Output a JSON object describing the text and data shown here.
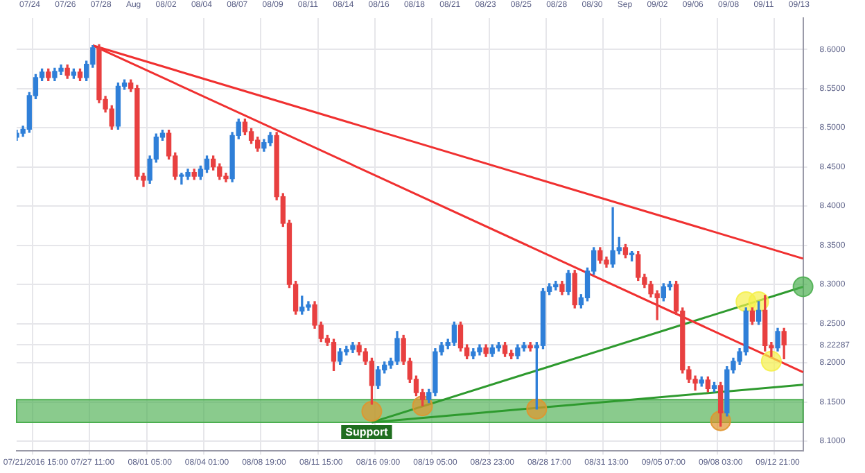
{
  "chart_data": {
    "type": "candlestick",
    "categories": [
      null,
      null,
      null,
      "07/21/2016 15:00",
      null,
      null,
      null,
      null,
      null,
      null,
      null,
      null,
      "07/27 11:00",
      null,
      null,
      null,
      null,
      null,
      null,
      null,
      null,
      "08/01 05:00",
      null,
      null,
      null,
      null,
      null,
      null,
      null,
      null,
      "08/04 01:00",
      null,
      null,
      null,
      null,
      null,
      null,
      null,
      null,
      "08/08 19:00",
      null,
      null,
      null,
      null,
      null,
      null,
      null,
      null,
      "08/11 15:00",
      null,
      null,
      null,
      null,
      null,
      null,
      null,
      null,
      "08/16 09:00",
      null,
      null,
      null,
      null,
      null,
      null,
      null,
      null,
      "08/19 05:00",
      null,
      null,
      null,
      null,
      null,
      null,
      null,
      null,
      "08/23 23:00",
      null,
      null,
      null,
      null,
      null,
      null,
      null,
      null,
      "08/28 17:00",
      null,
      null,
      null,
      null,
      null,
      null,
      null,
      null,
      "08/31 13:00",
      null,
      null,
      null,
      null,
      null,
      null,
      null,
      null,
      "09/05 07:00",
      null,
      null,
      null,
      null,
      null,
      null,
      null,
      null,
      "09/08 03:00",
      null,
      null,
      null,
      null,
      null,
      null,
      null,
      null,
      "09/12 21:00",
      null,
      null,
      null,
      null
    ],
    "ohlc": [
      [
        8.488,
        8.497,
        8.484,
        8.493
      ],
      [
        8.493,
        8.502,
        8.489,
        8.498
      ],
      [
        8.498,
        8.545,
        8.494,
        8.541
      ],
      [
        8.541,
        8.568,
        8.537,
        8.564
      ],
      [
        8.564,
        8.575,
        8.56,
        8.571
      ],
      [
        8.571,
        8.575,
        8.56,
        8.564
      ],
      [
        8.564,
        8.576,
        8.56,
        8.572
      ],
      [
        8.572,
        8.58,
        8.568,
        8.576
      ],
      [
        8.576,
        8.58,
        8.563,
        8.567
      ],
      [
        8.567,
        8.575,
        8.563,
        8.571
      ],
      [
        8.571,
        8.575,
        8.56,
        8.564
      ],
      [
        8.564,
        8.585,
        8.56,
        8.581
      ],
      [
        8.581,
        8.605,
        8.577,
        8.602
      ],
      [
        8.602,
        8.606,
        8.532,
        8.536
      ],
      [
        8.536,
        8.54,
        8.52,
        8.524
      ],
      [
        8.524,
        8.528,
        8.498,
        8.502
      ],
      [
        8.502,
        8.557,
        8.498,
        8.553
      ],
      [
        8.553,
        8.561,
        8.549,
        8.557
      ],
      [
        8.557,
        8.561,
        8.546,
        8.55
      ],
      [
        8.55,
        8.554,
        8.434,
        8.438
      ],
      [
        8.438,
        8.442,
        8.425,
        8.433
      ],
      [
        8.433,
        8.464,
        8.429,
        8.46
      ],
      [
        8.46,
        8.492,
        8.456,
        8.488
      ],
      [
        8.488,
        8.497,
        8.484,
        8.493
      ],
      [
        8.493,
        8.497,
        8.46,
        8.464
      ],
      [
        8.464,
        8.468,
        8.434,
        8.438
      ],
      [
        8.438,
        8.442,
        8.428,
        8.438
      ],
      [
        8.438,
        8.447,
        8.434,
        8.443
      ],
      [
        8.443,
        8.447,
        8.434,
        8.438
      ],
      [
        8.438,
        8.451,
        8.434,
        8.447
      ],
      [
        8.447,
        8.464,
        8.443,
        8.46
      ],
      [
        8.46,
        8.464,
        8.446,
        8.45
      ],
      [
        8.45,
        8.454,
        8.434,
        8.438
      ],
      [
        8.438,
        8.442,
        8.431,
        8.435
      ],
      [
        8.435,
        8.494,
        8.431,
        8.49
      ],
      [
        8.49,
        8.511,
        8.486,
        8.507
      ],
      [
        8.507,
        8.511,
        8.491,
        8.495
      ],
      [
        8.495,
        8.499,
        8.48,
        8.484
      ],
      [
        8.484,
        8.488,
        8.47,
        8.474
      ],
      [
        8.474,
        8.485,
        8.47,
        8.481
      ],
      [
        8.481,
        8.494,
        8.477,
        8.49
      ],
      [
        8.49,
        8.494,
        8.408,
        8.412
      ],
      [
        8.412,
        8.416,
        8.374,
        8.378
      ],
      [
        8.378,
        8.382,
        8.296,
        8.3
      ],
      [
        8.3,
        8.304,
        8.262,
        8.266
      ],
      [
        8.266,
        8.285,
        8.262,
        8.271
      ],
      [
        8.271,
        8.278,
        8.267,
        8.274
      ],
      [
        8.274,
        8.278,
        8.244,
        8.248
      ],
      [
        8.248,
        8.252,
        8.227,
        8.231
      ],
      [
        8.231,
        8.235,
        8.222,
        8.226
      ],
      [
        8.226,
        8.23,
        8.19,
        8.202
      ],
      [
        8.202,
        8.218,
        8.198,
        8.214
      ],
      [
        8.214,
        8.221,
        8.21,
        8.217
      ],
      [
        8.217,
        8.226,
        8.213,
        8.222
      ],
      [
        8.222,
        8.226,
        8.21,
        8.214
      ],
      [
        8.214,
        8.218,
        8.198,
        8.202
      ],
      [
        8.202,
        8.206,
        8.147,
        8.171
      ],
      [
        8.171,
        8.195,
        8.167,
        8.191
      ],
      [
        8.191,
        8.201,
        8.187,
        8.197
      ],
      [
        8.197,
        8.206,
        8.193,
        8.202
      ],
      [
        8.202,
        8.24,
        8.198,
        8.231
      ],
      [
        8.231,
        8.235,
        8.198,
        8.202
      ],
      [
        8.202,
        8.206,
        8.175,
        8.179
      ],
      [
        8.179,
        8.183,
        8.158,
        8.162
      ],
      [
        8.162,
        8.166,
        8.145,
        8.153
      ],
      [
        8.153,
        8.166,
        8.149,
        8.162
      ],
      [
        8.162,
        8.218,
        8.158,
        8.214
      ],
      [
        8.214,
        8.226,
        8.21,
        8.222
      ],
      [
        8.222,
        8.23,
        8.218,
        8.226
      ],
      [
        8.226,
        8.252,
        8.222,
        8.248
      ],
      [
        8.248,
        8.252,
        8.215,
        8.219
      ],
      [
        8.219,
        8.223,
        8.205,
        8.209
      ],
      [
        8.209,
        8.218,
        8.205,
        8.214
      ],
      [
        8.214,
        8.223,
        8.21,
        8.219
      ],
      [
        8.219,
        8.223,
        8.208,
        8.212
      ],
      [
        8.212,
        8.223,
        8.208,
        8.219
      ],
      [
        8.219,
        8.226,
        8.215,
        8.222
      ],
      [
        8.222,
        8.226,
        8.208,
        8.212
      ],
      [
        8.212,
        8.216,
        8.205,
        8.209
      ],
      [
        8.209,
        8.223,
        8.205,
        8.219
      ],
      [
        8.219,
        8.226,
        8.215,
        8.222
      ],
      [
        8.222,
        8.226,
        8.215,
        8.219
      ],
      [
        8.219,
        8.226,
        8.141,
        8.222
      ],
      [
        8.222,
        8.295,
        8.218,
        8.291
      ],
      [
        8.291,
        8.301,
        8.287,
        8.297
      ],
      [
        8.297,
        8.304,
        8.293,
        8.3
      ],
      [
        8.3,
        8.304,
        8.287,
        8.291
      ],
      [
        8.291,
        8.318,
        8.287,
        8.314
      ],
      [
        8.314,
        8.318,
        8.27,
        8.274
      ],
      [
        8.274,
        8.287,
        8.27,
        8.283
      ],
      [
        8.283,
        8.321,
        8.279,
        8.317
      ],
      [
        8.317,
        8.347,
        8.313,
        8.343
      ],
      [
        8.343,
        8.347,
        8.327,
        8.331
      ],
      [
        8.331,
        8.335,
        8.322,
        8.326
      ],
      [
        8.326,
        8.398,
        8.322,
        8.343
      ],
      [
        8.343,
        8.36,
        8.339,
        8.347
      ],
      [
        8.347,
        8.351,
        8.334,
        8.338
      ],
      [
        8.338,
        8.342,
        8.33,
        8.338
      ],
      [
        8.338,
        8.342,
        8.305,
        8.309
      ],
      [
        8.309,
        8.313,
        8.296,
        8.3
      ],
      [
        8.3,
        8.304,
        8.284,
        8.288
      ],
      [
        8.288,
        8.292,
        8.255,
        8.283
      ],
      [
        8.283,
        8.301,
        8.279,
        8.297
      ],
      [
        8.297,
        8.304,
        8.293,
        8.3
      ],
      [
        8.3,
        8.304,
        8.262,
        8.266
      ],
      [
        8.266,
        8.27,
        8.187,
        8.191
      ],
      [
        8.191,
        8.195,
        8.175,
        8.179
      ],
      [
        8.179,
        8.183,
        8.165,
        8.174
      ],
      [
        8.174,
        8.182,
        8.17,
        8.178
      ],
      [
        8.178,
        8.182,
        8.163,
        8.167
      ],
      [
        8.167,
        8.175,
        8.163,
        8.171
      ],
      [
        8.171,
        8.175,
        8.119,
        8.136
      ],
      [
        8.136,
        8.195,
        8.132,
        8.191
      ],
      [
        8.191,
        8.206,
        8.187,
        8.202
      ],
      [
        8.202,
        8.218,
        8.198,
        8.214
      ],
      [
        8.214,
        8.27,
        8.21,
        8.266
      ],
      [
        8.266,
        8.27,
        8.249,
        8.253
      ],
      [
        8.253,
        8.278,
        8.249,
        8.267
      ],
      [
        8.267,
        8.286,
        8.215,
        8.222
      ],
      [
        8.222,
        8.226,
        8.208,
        8.219
      ],
      [
        8.219,
        8.244,
        8.215,
        8.24
      ],
      [
        8.24,
        8.244,
        8.205,
        8.22287
      ],
      null,
      null,
      null
    ],
    "colors": [
      "#2f7fd8",
      "#2f7fd8",
      "#2f7fd8",
      "#2f7fd8",
      "#2f7fd8",
      "#e84040",
      "#2f7fd8",
      "#2f7fd8",
      "#e84040",
      "#2f7fd8",
      "#e84040",
      "#2f7fd8",
      "#2f7fd8",
      "#e84040",
      "#e84040",
      "#e84040",
      "#2f7fd8",
      "#2f7fd8",
      "#e84040",
      "#e84040",
      "#e84040",
      "#2f7fd8",
      "#2f7fd8",
      "#2f7fd8",
      "#e84040",
      "#e84040",
      "#2f7fd8",
      "#2f7fd8",
      "#e84040",
      "#2f7fd8",
      "#2f7fd8",
      "#e84040",
      "#e84040",
      "#e84040",
      "#2f7fd8",
      "#2f7fd8",
      "#e84040",
      "#e84040",
      "#e84040",
      "#2f7fd8",
      "#2f7fd8",
      "#e84040",
      "#e84040",
      "#e84040",
      "#e84040",
      "#2f7fd8",
      "#2f7fd8",
      "#e84040",
      "#e84040",
      "#e84040",
      "#e84040",
      "#2f7fd8",
      "#2f7fd8",
      "#2f7fd8",
      "#e84040",
      "#e84040",
      "#e84040",
      "#2f7fd8",
      "#2f7fd8",
      "#2f7fd8",
      "#2f7fd8",
      "#e84040",
      "#e84040",
      "#e84040",
      "#e84040",
      "#2f7fd8",
      "#2f7fd8",
      "#2f7fd8",
      "#2f7fd8",
      "#2f7fd8",
      "#e84040",
      "#e84040",
      "#2f7fd8",
      "#2f7fd8",
      "#e84040",
      "#2f7fd8",
      "#2f7fd8",
      "#e84040",
      "#e84040",
      "#2f7fd8",
      "#2f7fd8",
      "#e84040",
      "#2f7fd8",
      "#2f7fd8",
      "#2f7fd8",
      "#2f7fd8",
      "#e84040",
      "#2f7fd8",
      "#e84040",
      "#2f7fd8",
      "#2f7fd8",
      "#2f7fd8",
      "#e84040",
      "#e84040",
      "#2f7fd8",
      "#2f7fd8",
      "#e84040",
      "#2f7fd8",
      "#e84040",
      "#e84040",
      "#e84040",
      "#e84040",
      "#2f7fd8",
      "#2f7fd8",
      "#e84040",
      "#e84040",
      "#e84040",
      "#e84040",
      "#2f7fd8",
      "#e84040",
      "#2f7fd8",
      "#e84040",
      "#2f7fd8",
      "#2f7fd8",
      "#2f7fd8",
      "#2f7fd8",
      "#e84040",
      "#2f7fd8",
      "#e84040",
      "#e84040",
      "#2f7fd8",
      "#e84040",
      null,
      null,
      null
    ],
    "series": [
      {
        "type": "line",
        "values": [
          null,
          null,
          null,
          null,
          null,
          null,
          null,
          null,
          null,
          null,
          null,
          null,
          8.605,
          null,
          null,
          null,
          null,
          null,
          null,
          null,
          null,
          null,
          null,
          null,
          null,
          null,
          null,
          null,
          null,
          null,
          null,
          null,
          null,
          null,
          null,
          null,
          null,
          null,
          null,
          null,
          null,
          null,
          null,
          null,
          null,
          null,
          null,
          null,
          null,
          null,
          null,
          null,
          null,
          null,
          null,
          null,
          null,
          null,
          null,
          null,
          null,
          null,
          null,
          null,
          null,
          null,
          null,
          null,
          null,
          null,
          null,
          null,
          null,
          null,
          null,
          null,
          null,
          null,
          null,
          null,
          null,
          null,
          null,
          null,
          null,
          null,
          null,
          null,
          null,
          null,
          null,
          null,
          null,
          null,
          null,
          null,
          null,
          null,
          null,
          null,
          null,
          null,
          null,
          null,
          null,
          null,
          null,
          null,
          null,
          null,
          null,
          null,
          null,
          null,
          null,
          null,
          null,
          null,
          null,
          null,
          null,
          null,
          null,
          null,
          8.333
        ],
        "color": "#f03030"
      },
      {
        "type": "line",
        "values": [
          null,
          null,
          null,
          null,
          null,
          null,
          null,
          null,
          null,
          null,
          null,
          null,
          8.605,
          null,
          null,
          null,
          null,
          null,
          null,
          null,
          null,
          null,
          null,
          null,
          null,
          null,
          null,
          null,
          null,
          null,
          null,
          null,
          null,
          null,
          null,
          null,
          null,
          null,
          null,
          null,
          null,
          null,
          null,
          null,
          null,
          null,
          null,
          null,
          null,
          null,
          null,
          null,
          null,
          null,
          null,
          null,
          null,
          null,
          null,
          null,
          null,
          null,
          null,
          null,
          null,
          null,
          null,
          null,
          null,
          null,
          null,
          null,
          null,
          null,
          null,
          null,
          null,
          null,
          null,
          null,
          null,
          null,
          null,
          null,
          null,
          null,
          null,
          null,
          null,
          null,
          null,
          null,
          null,
          null,
          null,
          null,
          null,
          null,
          null,
          null,
          null,
          null,
          null,
          null,
          null,
          null,
          null,
          null,
          null,
          null,
          null,
          null,
          null,
          null,
          null,
          null,
          null,
          null,
          null,
          null,
          null,
          null,
          null,
          null,
          8.188
        ],
        "color": "#f03030"
      },
      {
        "type": "line",
        "values": [
          null,
          null,
          null,
          null,
          null,
          null,
          null,
          null,
          null,
          null,
          null,
          null,
          null,
          null,
          null,
          null,
          null,
          null,
          null,
          null,
          null,
          null,
          null,
          null,
          null,
          null,
          null,
          null,
          null,
          null,
          null,
          null,
          null,
          null,
          null,
          null,
          null,
          null,
          null,
          null,
          null,
          null,
          null,
          null,
          null,
          null,
          null,
          null,
          null,
          null,
          null,
          null,
          null,
          null,
          null,
          null,
          8.124,
          null,
          null,
          null,
          null,
          null,
          null,
          null,
          null,
          null,
          null,
          null,
          null,
          null,
          null,
          null,
          null,
          null,
          null,
          null,
          null,
          null,
          null,
          null,
          null,
          null,
          null,
          null,
          null,
          null,
          null,
          null,
          null,
          null,
          null,
          null,
          null,
          null,
          null,
          null,
          null,
          null,
          null,
          null,
          null,
          null,
          null,
          null,
          null,
          null,
          null,
          null,
          null,
          null,
          null,
          null,
          null,
          null,
          null,
          null,
          null,
          null,
          null,
          null,
          null,
          null,
          null,
          null,
          8.297
        ],
        "color": "#2e9a2e"
      },
      {
        "type": "line",
        "values": [
          null,
          null,
          null,
          null,
          null,
          null,
          null,
          null,
          null,
          null,
          null,
          null,
          null,
          null,
          null,
          null,
          null,
          null,
          null,
          null,
          null,
          null,
          null,
          null,
          null,
          null,
          null,
          null,
          null,
          null,
          null,
          null,
          null,
          null,
          null,
          null,
          null,
          null,
          null,
          null,
          null,
          null,
          null,
          null,
          null,
          null,
          null,
          null,
          null,
          null,
          null,
          null,
          null,
          null,
          null,
          null,
          8.124,
          null,
          null,
          null,
          null,
          null,
          null,
          null,
          null,
          null,
          null,
          null,
          null,
          null,
          null,
          null,
          null,
          null,
          null,
          null,
          null,
          null,
          null,
          null,
          null,
          null,
          null,
          null,
          null,
          null,
          null,
          null,
          null,
          null,
          null,
          null,
          null,
          null,
          null,
          null,
          null,
          null,
          null,
          null,
          null,
          null,
          null,
          null,
          null,
          null,
          null,
          null,
          null,
          null,
          null,
          null,
          null,
          null,
          null,
          null,
          null,
          null,
          null,
          null,
          null,
          null,
          null,
          null,
          8.172
        ],
        "color": "#2e9a2e"
      },
      {
        "type": "scatter",
        "marker": "circle",
        "values": [
          null,
          null,
          null,
          null,
          null,
          null,
          null,
          null,
          null,
          null,
          null,
          null,
          null,
          null,
          null,
          null,
          null,
          null,
          null,
          null,
          null,
          null,
          null,
          null,
          null,
          null,
          null,
          null,
          null,
          null,
          null,
          null,
          null,
          null,
          null,
          null,
          null,
          null,
          null,
          null,
          null,
          null,
          null,
          null,
          null,
          null,
          null,
          null,
          null,
          null,
          null,
          null,
          null,
          null,
          null,
          null,
          8.138,
          null,
          null,
          null,
          null,
          null,
          null,
          null,
          8.145,
          null,
          null,
          null,
          null,
          null,
          null,
          null,
          null,
          null,
          null,
          null,
          null,
          null,
          null,
          null,
          null,
          null,
          8.141,
          null,
          null,
          null,
          null,
          null,
          null,
          null,
          null,
          null,
          null,
          null,
          null,
          null,
          null,
          null,
          null,
          null,
          null,
          null,
          null,
          null,
          null,
          null,
          null,
          null,
          null,
          null,
          null,
          8.126,
          null,
          null,
          null,
          null,
          null,
          null,
          null,
          null,
          null,
          null,
          null,
          null,
          null
        ],
        "color": "#e0952e"
      },
      {
        "type": "scatter",
        "marker": "circle",
        "values": [
          null,
          null,
          null,
          null,
          null,
          null,
          null,
          null,
          null,
          null,
          null,
          null,
          null,
          null,
          null,
          null,
          null,
          null,
          null,
          null,
          null,
          null,
          null,
          null,
          null,
          null,
          null,
          null,
          null,
          null,
          null,
          null,
          null,
          null,
          null,
          null,
          null,
          null,
          null,
          null,
          null,
          null,
          null,
          null,
          null,
          null,
          null,
          null,
          null,
          null,
          null,
          null,
          null,
          null,
          null,
          null,
          null,
          null,
          null,
          null,
          null,
          null,
          null,
          null,
          null,
          null,
          null,
          null,
          null,
          null,
          null,
          null,
          null,
          null,
          null,
          null,
          null,
          null,
          null,
          null,
          null,
          null,
          null,
          null,
          null,
          null,
          null,
          null,
          null,
          null,
          null,
          null,
          null,
          null,
          null,
          null,
          null,
          null,
          null,
          null,
          null,
          null,
          null,
          null,
          null,
          null,
          null,
          null,
          null,
          null,
          null,
          null,
          null,
          null,
          null,
          8.278,
          null,
          8.278,
          null,
          8.202,
          null,
          null,
          null,
          null,
          null
        ],
        "color": "#f5f04a"
      },
      {
        "type": "scatter",
        "marker": "circle",
        "values": [
          null,
          null,
          null,
          null,
          null,
          null,
          null,
          null,
          null,
          null,
          null,
          null,
          null,
          null,
          null,
          null,
          null,
          null,
          null,
          null,
          null,
          null,
          null,
          null,
          null,
          null,
          null,
          null,
          null,
          null,
          null,
          null,
          null,
          null,
          null,
          null,
          null,
          null,
          null,
          null,
          null,
          null,
          null,
          null,
          null,
          null,
          null,
          null,
          null,
          null,
          null,
          null,
          null,
          null,
          null,
          null,
          null,
          null,
          null,
          null,
          null,
          null,
          null,
          null,
          null,
          null,
          null,
          null,
          null,
          null,
          null,
          null,
          null,
          null,
          null,
          null,
          null,
          null,
          null,
          null,
          null,
          null,
          null,
          null,
          null,
          null,
          null,
          null,
          null,
          null,
          null,
          null,
          null,
          null,
          null,
          null,
          null,
          null,
          null,
          null,
          null,
          null,
          null,
          null,
          null,
          null,
          null,
          null,
          null,
          null,
          null,
          null,
          null,
          null,
          null,
          null,
          null,
          null,
          null,
          null,
          null,
          null,
          null,
          null,
          8.297
        ],
        "color": "#4caf50"
      }
    ],
    "bands": [
      {
        "axis": "y",
        "from": 8.124,
        "to": 8.153,
        "label": "Support",
        "color": "#4caf50"
      }
    ],
    "annotations": [
      "07/24",
      "07/26",
      "07/28",
      "Aug",
      "08/02",
      "08/04",
      "08/07",
      "08/09",
      "08/11",
      "08/14",
      "08/16",
      "08/18",
      "08/21",
      "08/23",
      "08/25",
      "08/28",
      "08/30",
      "Sep",
      "09/02",
      "09/06",
      "09/08",
      "09/11",
      "09/13"
    ],
    "ylim": [
      8.088,
      8.64
    ],
    "yticks": [
      {
        "value": 8.1,
        "label": "8.1000"
      },
      {
        "value": 8.15,
        "label": "8.1500"
      },
      {
        "value": 8.2,
        "label": "8.2000"
      },
      {
        "value": 8.22287,
        "label": "8.22287"
      },
      {
        "value": 8.25,
        "label": "8.2500"
      },
      {
        "value": 8.3,
        "label": "8.3000"
      },
      {
        "value": 8.35,
        "label": "8.3500"
      },
      {
        "value": 8.4,
        "label": "8.4000"
      },
      {
        "value": 8.45,
        "label": "8.4500"
      },
      {
        "value": 8.5,
        "label": "8.5000"
      },
      {
        "value": 8.55,
        "label": "8.5500"
      },
      {
        "value": 8.6,
        "label": "8.6000"
      }
    ],
    "grid": true
  }
}
